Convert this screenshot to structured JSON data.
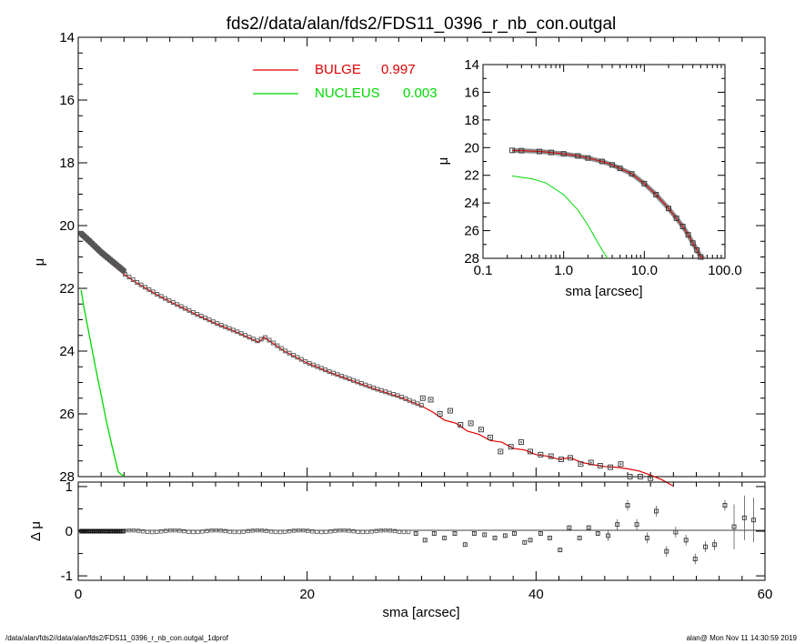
{
  "figure": {
    "title": "fds2//data/alan/fds2/FDS11_0396_r_nb_con.outgal",
    "footer_left": "/data/alan/fds2//data/alan/fds2/FDS11_0396_r_nb_con.outgal_1dprof",
    "footer_right": "alan@  Mon Nov 11 14:30:59 2019",
    "colors": {
      "bulge": "#e00000",
      "nucleus": "#00d800",
      "data": "#555555",
      "axes": "#000000"
    }
  },
  "chart_data": [
    {
      "id": "main",
      "type": "scatter",
      "title": "fds2//data/alan/fds2/FDS11_0396_r_nb_con.outgal",
      "xlabel": "",
      "ylabel": "μ",
      "xlim": [
        0,
        60
      ],
      "ylim": [
        28,
        14
      ],
      "y_inverted": true,
      "xticks": [
        0,
        20,
        40,
        60
      ],
      "yticks": [
        "14",
        "16",
        "18",
        "20",
        "22",
        "24",
        "26",
        "28"
      ],
      "legend": [
        {
          "label": "BULGE",
          "value": "0.997",
          "color": "#e00000"
        },
        {
          "label": "NUCLEUS",
          "value": "0.003",
          "color": "#00d800"
        }
      ],
      "legend_position": "top-center",
      "data_points": {
        "x": [
          30.1,
          30.8,
          31.6,
          32.5,
          33.4,
          34.3,
          35.2,
          36.0,
          36.9,
          37.8,
          38.7,
          39.5,
          40.4,
          41.3,
          42.2,
          43.0,
          43.9,
          44.8,
          45.6,
          46.5,
          47.4,
          48.2,
          49.1,
          50.0,
          50.9,
          51.7,
          52.6,
          53.5,
          54.3,
          55.2,
          56.1,
          57.0,
          57.8,
          58.7
        ],
        "y": [
          25.5,
          25.55,
          26.0,
          25.9,
          26.35,
          26.3,
          26.5,
          26.75,
          27.2,
          27.05,
          26.9,
          27.2,
          27.3,
          27.35,
          27.45,
          27.4,
          27.6,
          27.55,
          27.65,
          27.7,
          27.6,
          28.0,
          28.0,
          28.05,
          28.1,
          28.2,
          28.15,
          28.2,
          28.3,
          28.3,
          28.5,
          28.6,
          28.7,
          28.8
        ]
      },
      "bulge_model": {
        "x": [
          0.25,
          1,
          2,
          3,
          4,
          5,
          6,
          7,
          8,
          9,
          10,
          12,
          14,
          15.8,
          16.2,
          18,
          20,
          22,
          24,
          26,
          28,
          30,
          31,
          32,
          33,
          34,
          35,
          36,
          37,
          38,
          39,
          40,
          41,
          42,
          43,
          44,
          45,
          46,
          47,
          48,
          49,
          50,
          51,
          52
        ],
        "y": [
          20.35,
          20.6,
          20.95,
          21.25,
          21.55,
          21.8,
          22.02,
          22.23,
          22.42,
          22.6,
          22.78,
          23.12,
          23.42,
          23.72,
          23.55,
          24.0,
          24.38,
          24.68,
          24.95,
          25.22,
          25.45,
          25.75,
          25.95,
          26.2,
          26.3,
          26.55,
          26.65,
          26.85,
          26.9,
          27.1,
          27.15,
          27.3,
          27.35,
          27.45,
          27.4,
          27.55,
          27.62,
          27.68,
          27.7,
          27.75,
          27.82,
          27.95,
          28.1,
          28.3
        ]
      },
      "nucleus_model": {
        "x": [
          0.25,
          0.5,
          1.0,
          1.5,
          2.0,
          2.5,
          3.0,
          3.5,
          4.0
        ],
        "y": [
          22.05,
          22.6,
          23.55,
          24.5,
          25.4,
          26.3,
          27.1,
          27.85,
          28.5
        ]
      }
    },
    {
      "id": "inset",
      "type": "line",
      "xlabel": "sma [arcsec]",
      "ylabel": "μ",
      "x_scale": "log",
      "xlim": [
        0.1,
        100
      ],
      "ylim": [
        28,
        14
      ],
      "y_inverted": true,
      "xticks": [
        "0.1",
        "1.0",
        "10.0",
        "100.0"
      ],
      "yticks": [
        "14",
        "16",
        "18",
        "20",
        "22",
        "24",
        "26",
        "28"
      ],
      "data_model": {
        "x": [
          0.23,
          0.3,
          0.5,
          0.7,
          1.0,
          1.5,
          2,
          3,
          4,
          5,
          7,
          10,
          14,
          20,
          25,
          30,
          35,
          40,
          45,
          50,
          55
        ],
        "y": [
          20.2,
          20.22,
          20.28,
          20.35,
          20.45,
          20.6,
          20.75,
          21.0,
          21.25,
          21.5,
          21.9,
          22.6,
          23.4,
          24.4,
          25.1,
          25.7,
          26.3,
          26.9,
          27.4,
          27.9,
          28.2
        ]
      },
      "nucleus_model": {
        "x": [
          0.23,
          0.4,
          0.6,
          1.0,
          1.5,
          2.0,
          2.5,
          3.0,
          3.5
        ],
        "y": [
          22.05,
          22.25,
          22.55,
          23.4,
          24.5,
          25.6,
          26.6,
          27.4,
          28.2
        ]
      }
    },
    {
      "id": "residual",
      "type": "scatter",
      "xlabel": "sma [arcsec]",
      "ylabel": "Δ μ",
      "xlim": [
        0,
        60
      ],
      "ylim": [
        -1.1,
        1.1
      ],
      "xticks": [
        "0",
        "20",
        "40",
        "60"
      ],
      "yticks": [
        "1",
        "0",
        "-1"
      ],
      "data_points": {
        "x": [
          29.5,
          30.3,
          31.1,
          32.0,
          32.9,
          33.8,
          34.6,
          35.5,
          36.4,
          37.3,
          38.1,
          39.0,
          39.5,
          40.4,
          41.2,
          42.1,
          42.9,
          43.8,
          44.6,
          45.4,
          46.3,
          47.1,
          48.0,
          48.8,
          49.7,
          50.5,
          51.4,
          52.2,
          53.1,
          53.9,
          54.8,
          55.6,
          56.5,
          57.3,
          58.2,
          59.0
        ],
        "y": [
          -0.05,
          -0.2,
          -0.05,
          -0.15,
          -0.05,
          -0.3,
          -0.05,
          -0.08,
          -0.15,
          -0.1,
          -0.05,
          -0.25,
          -0.2,
          -0.05,
          -0.15,
          -0.42,
          0.08,
          -0.15,
          0.08,
          -0.05,
          -0.1,
          0.15,
          0.58,
          0.15,
          -0.15,
          0.45,
          -0.45,
          -0.02,
          -0.2,
          -0.62,
          -0.35,
          -0.3,
          0.58,
          0.1,
          0.3,
          0.25
        ]
      }
    }
  ]
}
